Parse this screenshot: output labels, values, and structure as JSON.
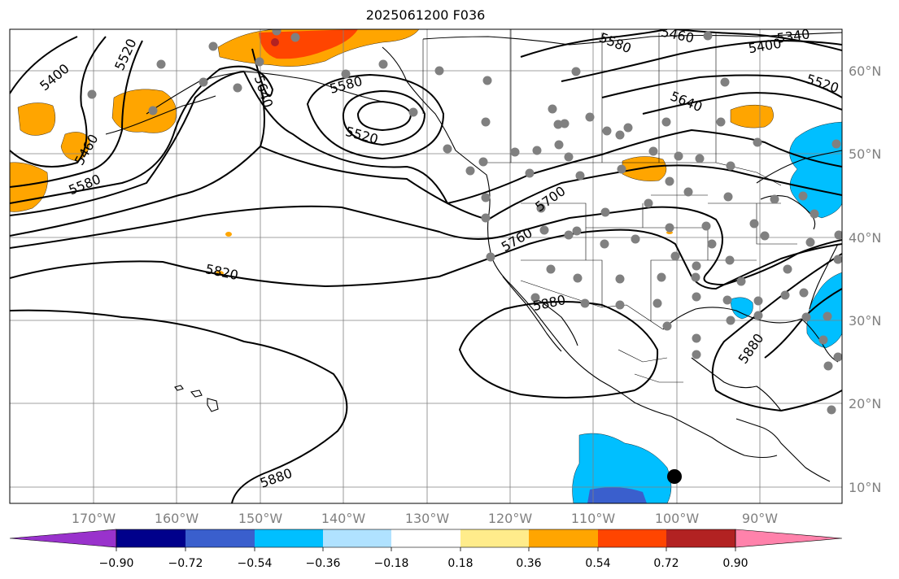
{
  "title": "2025061200 F036",
  "lon_labels": [
    "170°W",
    "160°W",
    "150°W",
    "140°W",
    "130°W",
    "120°W",
    "110°W",
    "100°W",
    "90°W"
  ],
  "lat_labels": [
    "60°N",
    "50°N",
    "40°N",
    "30°N",
    "20°N",
    "10°N"
  ],
  "colorbar": {
    "ticks": [
      "−0.90",
      "−0.72",
      "−0.54",
      "−0.36",
      "−0.18",
      "0.18",
      "0.36",
      "0.54",
      "0.72",
      "0.90"
    ],
    "colors": [
      "#9932cc",
      "#00008b",
      "#3a5fcd",
      "#00bfff",
      "#b0e2ff",
      "#ffffff",
      "#ffec8b",
      "#ffa500",
      "#ff4500",
      "#b22222",
      "#ff82ab"
    ]
  },
  "contour_labels": [
    "5400",
    "5520",
    "5460",
    "5580",
    "5580",
    "5520",
    "5640",
    "5460",
    "5400",
    "5520",
    "5580",
    "5640",
    "5700",
    "5760",
    "5820",
    "5880",
    "5880",
    "5880",
    "5340"
  ],
  "colors": {
    "grid": "#808080",
    "coast": "#000000",
    "contour": "#000000",
    "station": "#808080"
  }
}
